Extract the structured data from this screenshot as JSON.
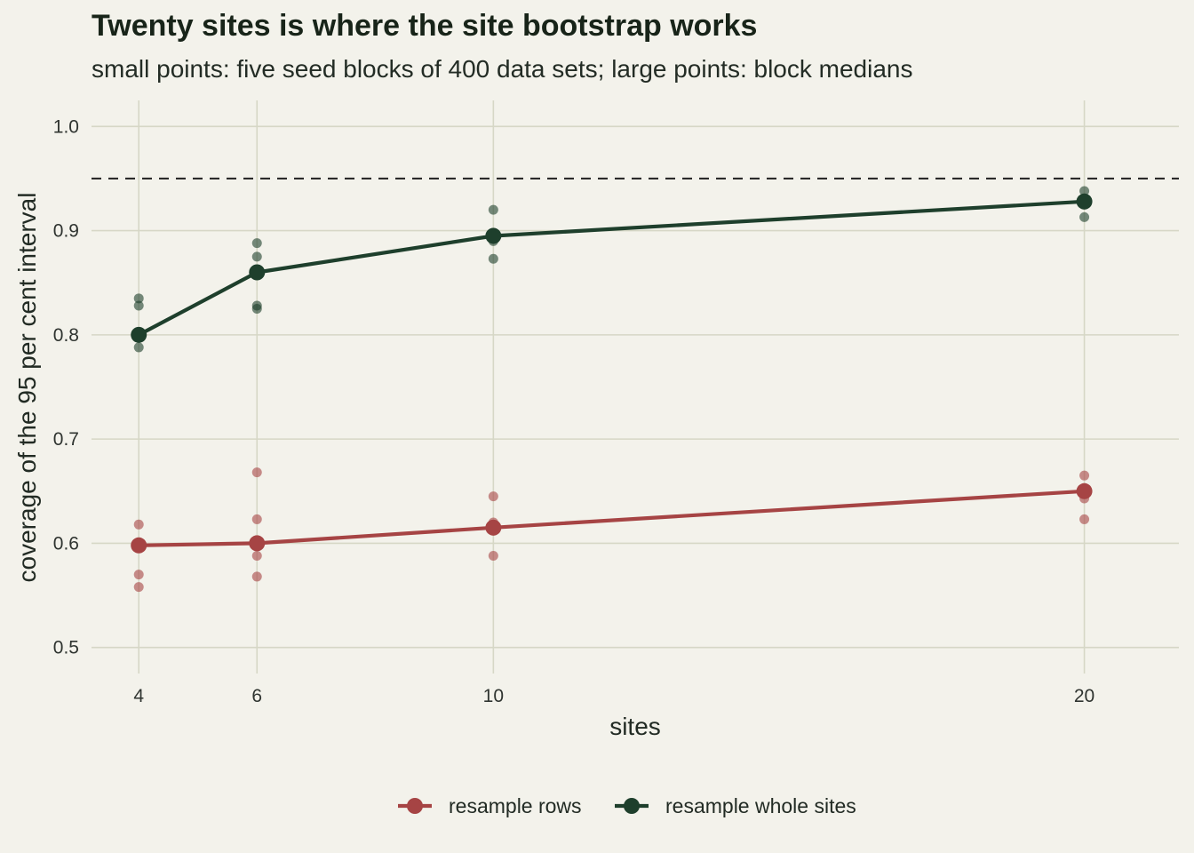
{
  "chart_data": {
    "type": "line",
    "title": "Twenty sites is where the site bootstrap works",
    "subtitle": "small points: five seed blocks of 400 data sets; large points: block medians",
    "xlabel": "sites",
    "ylabel": "coverage of the 95 per cent interval",
    "x_ticks": [
      4,
      6,
      10,
      20
    ],
    "y_ticks": [
      0.5,
      0.6,
      0.7,
      0.8,
      0.9,
      1.0
    ],
    "y_tick_labels": [
      "0.5",
      "0.6",
      "0.7",
      "0.8",
      "0.9",
      "1.0"
    ],
    "x_tick_labels": [
      "4",
      "6",
      "10",
      "20"
    ],
    "xlim": [
      3.2,
      21.6
    ],
    "ylim": [
      0.475,
      1.025
    ],
    "grid": true,
    "reference_line": {
      "y": 0.95,
      "style": "dashed"
    },
    "legend_position": "bottom",
    "series": [
      {
        "name": "resample rows",
        "color": "#a64444",
        "x": [
          4,
          6,
          10,
          20
        ],
        "medians": [
          0.598,
          0.6,
          0.615,
          0.65
        ],
        "blocks": [
          [
            0.558,
            0.57,
            0.598,
            0.598,
            0.618
          ],
          [
            0.568,
            0.588,
            0.6,
            0.623,
            0.668
          ],
          [
            0.588,
            0.615,
            0.617,
            0.62,
            0.645
          ],
          [
            0.623,
            0.643,
            0.65,
            0.651,
            0.665
          ]
        ]
      },
      {
        "name": "resample whole sites",
        "color": "#1e3f2c",
        "x": [
          4,
          6,
          10,
          20
        ],
        "medians": [
          0.8,
          0.86,
          0.895,
          0.928
        ],
        "blocks": [
          [
            0.788,
            0.798,
            0.8,
            0.828,
            0.835
          ],
          [
            0.825,
            0.828,
            0.86,
            0.875,
            0.888
          ],
          [
            0.873,
            0.89,
            0.895,
            0.898,
            0.92
          ],
          [
            0.913,
            0.925,
            0.928,
            0.93,
            0.938
          ]
        ]
      }
    ]
  }
}
